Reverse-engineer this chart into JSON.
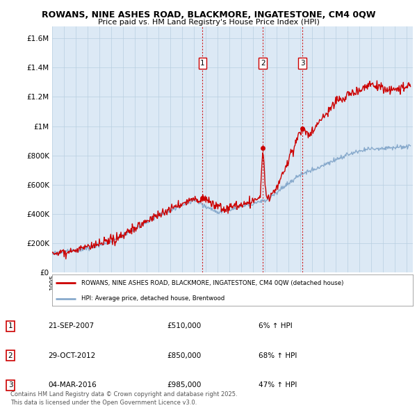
{
  "title1": "ROWANS, NINE ASHES ROAD, BLACKMORE, INGATESTONE, CM4 0QW",
  "title2": "Price paid vs. HM Land Registry's House Price Index (HPI)",
  "ytick_vals": [
    0,
    200000,
    400000,
    600000,
    800000,
    1000000,
    1200000,
    1400000,
    1600000
  ],
  "ytick_labels": [
    "£0",
    "£200K",
    "£400K",
    "£600K",
    "£800K",
    "£1M",
    "£1.2M",
    "£1.4M",
    "£1.6M"
  ],
  "ylim": [
    0,
    1680000
  ],
  "xlim_start": 1995.0,
  "xlim_end": 2025.5,
  "sale_color": "#cc0000",
  "hpi_color": "#88aacc",
  "sales": [
    {
      "date": 2007.72,
      "price": 510000,
      "label": "1"
    },
    {
      "date": 2012.83,
      "price": 850000,
      "label": "2"
    },
    {
      "date": 2016.17,
      "price": 985000,
      "label": "3"
    }
  ],
  "legend_line1": "ROWANS, NINE ASHES ROAD, BLACKMORE, INGATESTONE, CM4 0QW (detached house)",
  "legend_line2": "HPI: Average price, detached house, Brentwood",
  "table_rows": [
    {
      "num": "1",
      "date": "21-SEP-2007",
      "price": "£510,000",
      "change": "6% ↑ HPI"
    },
    {
      "num": "2",
      "date": "29-OCT-2012",
      "price": "£850,000",
      "change": "68% ↑ HPI"
    },
    {
      "num": "3",
      "date": "04-MAR-2016",
      "price": "£985,000",
      "change": "47% ↑ HPI"
    }
  ],
  "footer": "Contains HM Land Registry data © Crown copyright and database right 2025.\nThis data is licensed under the Open Government Licence v3.0.",
  "background_color": "#ffffff",
  "plot_bg_color": "#dce9f5"
}
